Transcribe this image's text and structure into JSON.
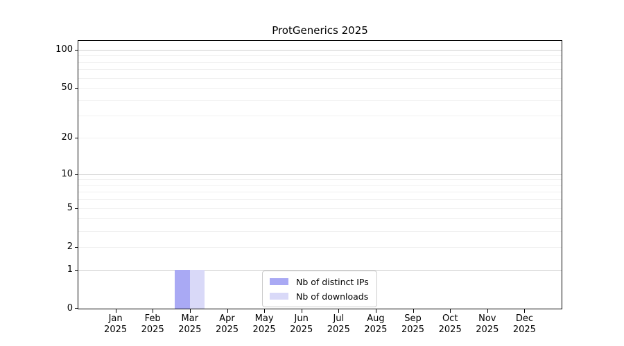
{
  "title": "ProtGenerics 2025",
  "colors": {
    "bar_distinct_ips": "#a9a9f4",
    "bar_downloads": "#d9d9f8",
    "grid_major": "#cfcfcf",
    "grid_minor": "#f0f0f0",
    "axis": "#000000",
    "legend_border": "#cccccc"
  },
  "y_axis": {
    "scale": "log10(1+x)",
    "tick_values": [
      0,
      1,
      2,
      5,
      10,
      20,
      50,
      100
    ],
    "tick_labels": [
      "0",
      "1",
      "2",
      "5",
      "10",
      "20",
      "50",
      "100"
    ],
    "minor_grid_values": [
      2,
      3,
      4,
      5,
      6,
      7,
      8,
      9,
      20,
      30,
      40,
      50,
      60,
      70,
      80,
      90
    ],
    "major_grid_values": [
      1,
      10,
      100
    ]
  },
  "x_axis": {
    "months": [
      "Jan",
      "Feb",
      "Mar",
      "Apr",
      "May",
      "Jun",
      "Jul",
      "Aug",
      "Sep",
      "Oct",
      "Nov",
      "Dec"
    ],
    "year": "2025"
  },
  "legend": {
    "items": [
      {
        "label": "Nb of distinct IPs",
        "color": "#a9a9f4"
      },
      {
        "label": "Nb of downloads",
        "color": "#d9d9f8"
      }
    ]
  },
  "chart_data": {
    "type": "bar",
    "title": "ProtGenerics 2025",
    "xlabel": "",
    "ylabel": "",
    "y_scale": "log10(1+x)",
    "ylim": [
      0,
      116
    ],
    "grid": true,
    "legend_position": "inside-bottom-center",
    "categories": [
      "Jan 2025",
      "Feb 2025",
      "Mar 2025",
      "Apr 2025",
      "May 2025",
      "Jun 2025",
      "Jul 2025",
      "Aug 2025",
      "Sep 2025",
      "Oct 2025",
      "Nov 2025",
      "Dec 2025"
    ],
    "series": [
      {
        "name": "Nb of distinct IPs",
        "color": "#a9a9f4",
        "values": [
          0,
          0,
          1,
          0,
          0,
          0,
          0,
          0,
          0,
          0,
          0,
          0
        ]
      },
      {
        "name": "Nb of downloads",
        "color": "#d9d9f8",
        "values": [
          0,
          0,
          1,
          0,
          0,
          0,
          0,
          0,
          0,
          0,
          0,
          0
        ]
      }
    ]
  }
}
